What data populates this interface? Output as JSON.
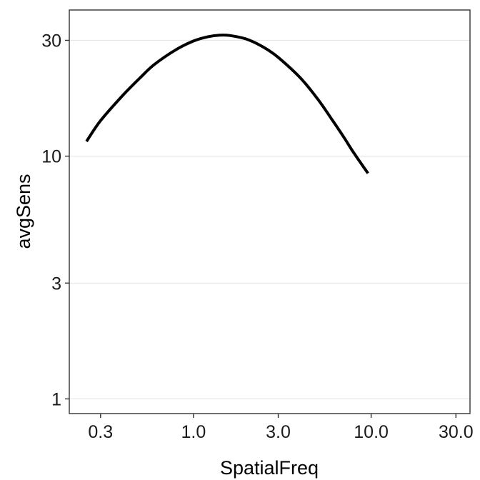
{
  "chart_data": {
    "type": "line",
    "xlabel": "SpatialFreq",
    "ylabel": "avgSens",
    "x_scale": "log10",
    "y_scale": "log10",
    "xlim": [
      0.2,
      36
    ],
    "ylim": [
      0.87,
      40
    ],
    "x_ticks": [
      0.3,
      1.0,
      3.0,
      10.0,
      30.0
    ],
    "x_tick_labels": [
      "0.3",
      "1.0",
      "3.0",
      "10.0",
      "30.0"
    ],
    "y_ticks": [
      1,
      3,
      10,
      30
    ],
    "y_tick_labels": [
      "1",
      "3",
      "10",
      "30"
    ],
    "grid": "horizontal-major",
    "legend": "none",
    "series": [
      {
        "color": "#000000",
        "x": [
          0.25,
          0.3,
          0.4,
          0.5,
          0.6,
          0.8,
          1.0,
          1.2,
          1.4,
          1.6,
          2.0,
          2.5,
          3.0,
          4.0,
          5.0,
          6.0,
          7.0,
          8.0,
          9.6
        ],
        "y": [
          11.5,
          14.0,
          17.8,
          21.0,
          23.8,
          27.5,
          29.8,
          31.0,
          31.5,
          31.4,
          30.3,
          28.0,
          25.5,
          21.0,
          17.2,
          14.2,
          12.0,
          10.3,
          8.5
        ]
      }
    ]
  }
}
